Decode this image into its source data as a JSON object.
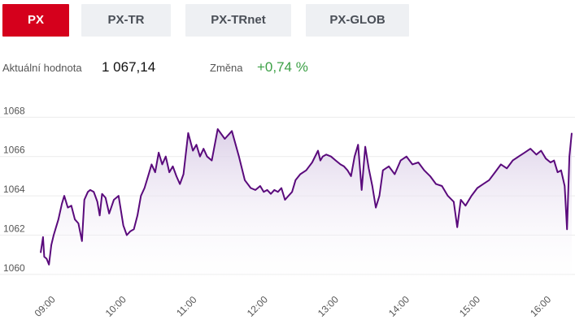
{
  "tabs": [
    {
      "label": "PX",
      "active": true
    },
    {
      "label": "PX-TR",
      "active": false
    },
    {
      "label": "PX-TRnet",
      "active": false
    },
    {
      "label": "PX-GLOB",
      "active": false
    }
  ],
  "stats": {
    "current_label": "Aktuální hodnota",
    "current_value": "1 067,14",
    "change_label": "Změna",
    "change_value": "+0,74 %"
  },
  "colors": {
    "accent": "#d5001c",
    "line": "#5a0a7c",
    "area_top": "#d9cce6",
    "change_positive": "#3ca046"
  },
  "chart_data": {
    "type": "area",
    "ylim": [
      1059.5,
      1068.8
    ],
    "yticks": [
      "1060",
      "1062",
      "1064",
      "1066",
      "1068"
    ],
    "ytick_values": [
      1060,
      1062,
      1064,
      1066,
      1068
    ],
    "xlim": [
      "09:00",
      "16:30"
    ],
    "xticks": [
      "09:00",
      "10:00",
      "11:00",
      "12:00",
      "13:00",
      "14:00",
      "15:00",
      "16:00"
    ],
    "grid": true,
    "series": [
      {
        "x": [
          "09:00",
          "09:02",
          "09:03",
          "09:05",
          "09:07",
          "09:09",
          "09:11",
          "09:13",
          "09:15",
          "09:18",
          "09:20",
          "09:23",
          "09:26",
          "09:29",
          "09:32",
          "09:35",
          "09:37",
          "09:40",
          "09:42",
          "09:45",
          "09:48",
          "09:50",
          "09:52",
          "09:55",
          "09:58",
          "10:02",
          "10:06",
          "10:10",
          "10:13",
          "10:16",
          "10:19",
          "10:22",
          "10:25",
          "10:28",
          "10:31",
          "10:34",
          "10:37",
          "10:40",
          "10:43",
          "10:46",
          "10:49",
          "10:52",
          "10:55",
          "10:58",
          "11:01",
          "11:05",
          "11:09",
          "11:12",
          "11:15",
          "11:18",
          "11:21",
          "11:25",
          "11:30",
          "11:36",
          "11:42",
          "11:48",
          "11:53",
          "11:58",
          "12:02",
          "12:06",
          "12:09",
          "12:12",
          "12:15",
          "12:18",
          "12:21",
          "12:24",
          "12:27",
          "12:30",
          "12:33",
          "12:36",
          "12:40",
          "12:45",
          "12:50",
          "12:55",
          "12:57",
          "12:59",
          "13:02",
          "13:06",
          "13:10",
          "13:14",
          "13:17",
          "13:20",
          "13:23",
          "13:26",
          "13:29",
          "13:32",
          "13:35",
          "13:38",
          "13:41",
          "13:44",
          "13:47",
          "13:50",
          "13:55",
          "14:00",
          "14:05",
          "14:10",
          "14:15",
          "14:20",
          "14:25",
          "14:30",
          "14:35",
          "14:40",
          "14:45",
          "14:50",
          "14:53",
          "14:56",
          "15:00",
          "15:05",
          "15:10",
          "15:15",
          "15:20",
          "15:25",
          "15:30",
          "15:35",
          "15:40",
          "15:45",
          "15:50",
          "15:55",
          "16:00",
          "16:04",
          "16:08",
          "16:12",
          "16:15",
          "16:18",
          "16:21",
          "16:24",
          "16:26",
          "16:28",
          "16:30"
        ],
        "values": [
          1061.1,
          1061.9,
          1060.9,
          1060.8,
          1060.5,
          1061.5,
          1062.0,
          1062.4,
          1062.8,
          1063.6,
          1064.0,
          1063.4,
          1063.5,
          1062.8,
          1062.6,
          1061.7,
          1063.8,
          1064.2,
          1064.3,
          1064.2,
          1063.7,
          1063.0,
          1064.1,
          1063.9,
          1063.1,
          1063.8,
          1064.0,
          1062.5,
          1062.0,
          1062.2,
          1062.3,
          1063.0,
          1064.0,
          1064.4,
          1065.0,
          1065.6,
          1065.2,
          1066.2,
          1065.6,
          1066.0,
          1065.2,
          1065.5,
          1065.0,
          1064.6,
          1065.1,
          1067.2,
          1066.3,
          1066.6,
          1066.0,
          1066.4,
          1066.0,
          1065.8,
          1067.4,
          1066.9,
          1067.3,
          1066.0,
          1064.8,
          1064.4,
          1064.3,
          1064.5,
          1064.2,
          1064.3,
          1064.1,
          1064.3,
          1064.2,
          1064.4,
          1063.8,
          1064.0,
          1064.2,
          1064.8,
          1065.1,
          1065.3,
          1065.7,
          1066.3,
          1065.8,
          1066.0,
          1066.1,
          1066.0,
          1065.8,
          1065.6,
          1065.5,
          1065.3,
          1065.0,
          1066.0,
          1066.6,
          1064.3,
          1066.5,
          1065.4,
          1064.5,
          1063.4,
          1064.0,
          1065.3,
          1065.5,
          1065.1,
          1065.8,
          1066.0,
          1065.6,
          1065.7,
          1065.3,
          1065.0,
          1064.6,
          1064.5,
          1064.0,
          1063.7,
          1062.4,
          1063.8,
          1063.5,
          1064.0,
          1064.4,
          1064.6,
          1064.8,
          1065.2,
          1065.6,
          1065.4,
          1065.8,
          1066.0,
          1066.2,
          1066.4,
          1066.1,
          1066.3,
          1065.9,
          1065.7,
          1065.8,
          1065.2,
          1065.3,
          1064.5,
          1062.3,
          1066.0,
          1067.2
        ]
      }
    ]
  }
}
